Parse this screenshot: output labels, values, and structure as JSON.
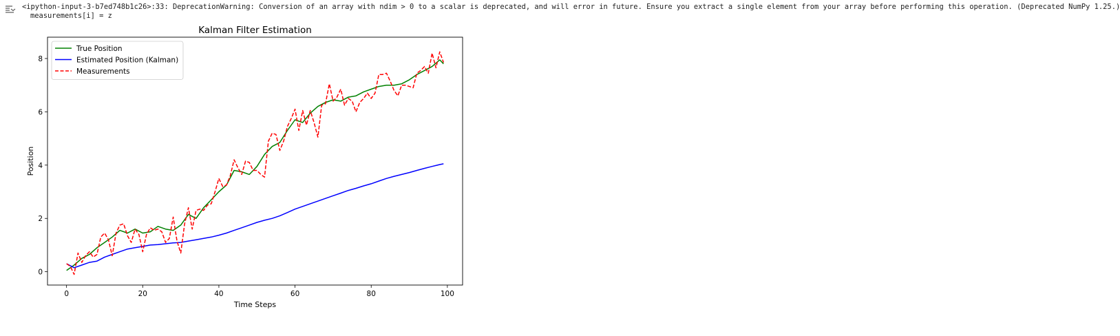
{
  "stderr": {
    "line1": "<ipython-input-3-b7ed748b1c26>:33: DeprecationWarning: Conversion of an array with ndim > 0 to a scalar is deprecated, and will error in future. Ensure you extract a single element from your array before performing this operation. (Deprecated NumPy 1.25.)",
    "line2": "measurements[i] = z"
  },
  "icons": {
    "output": "output-arrow-icon"
  },
  "chart_data": {
    "type": "line",
    "title": "Kalman Filter Estimation",
    "xlabel": "Time Steps",
    "ylabel": "Position",
    "xlim": [
      -5,
      104
    ],
    "ylim": [
      -0.5,
      8.8
    ],
    "xticks": [
      0,
      20,
      40,
      60,
      80,
      100
    ],
    "yticks": [
      0,
      2,
      4,
      6,
      8
    ],
    "grid": false,
    "legend_position": "upper-left",
    "series": [
      {
        "name": "True Position",
        "color": "#008000",
        "style": "solid",
        "x": [
          0,
          2,
          4,
          6,
          8,
          10,
          12,
          14,
          16,
          18,
          20,
          22,
          24,
          26,
          28,
          30,
          32,
          34,
          36,
          38,
          40,
          42,
          44,
          46,
          48,
          50,
          52,
          54,
          56,
          58,
          60,
          62,
          64,
          66,
          68,
          70,
          72,
          74,
          76,
          78,
          80,
          82,
          84,
          86,
          88,
          90,
          92,
          94,
          96,
          98,
          99
        ],
        "y": [
          0.05,
          0.25,
          0.5,
          0.65,
          0.9,
          1.1,
          1.3,
          1.55,
          1.45,
          1.6,
          1.45,
          1.5,
          1.7,
          1.6,
          1.55,
          1.75,
          2.15,
          2.0,
          2.4,
          2.7,
          3.0,
          3.25,
          3.8,
          3.75,
          3.65,
          3.95,
          4.4,
          4.7,
          4.85,
          5.3,
          5.7,
          5.6,
          5.95,
          6.2,
          6.35,
          6.45,
          6.4,
          6.55,
          6.6,
          6.75,
          6.85,
          6.95,
          7.0,
          7.0,
          7.05,
          7.2,
          7.4,
          7.55,
          7.7,
          7.95,
          7.8
        ]
      },
      {
        "name": "Estimated Position (Kalman)",
        "color": "#0000ff",
        "style": "solid",
        "x": [
          0,
          2,
          4,
          6,
          8,
          10,
          12,
          14,
          16,
          18,
          20,
          22,
          24,
          26,
          28,
          30,
          32,
          34,
          36,
          38,
          40,
          42,
          44,
          46,
          48,
          50,
          52,
          54,
          56,
          58,
          60,
          62,
          64,
          66,
          68,
          70,
          72,
          74,
          76,
          78,
          80,
          82,
          84,
          86,
          88,
          90,
          92,
          94,
          96,
          98,
          99
        ],
        "y": [
          0.3,
          0.15,
          0.25,
          0.35,
          0.4,
          0.55,
          0.65,
          0.75,
          0.85,
          0.9,
          0.95,
          1.0,
          1.02,
          1.05,
          1.08,
          1.1,
          1.15,
          1.2,
          1.25,
          1.3,
          1.37,
          1.45,
          1.55,
          1.65,
          1.75,
          1.85,
          1.93,
          2.0,
          2.1,
          2.22,
          2.35,
          2.45,
          2.55,
          2.65,
          2.75,
          2.85,
          2.95,
          3.05,
          3.13,
          3.22,
          3.3,
          3.4,
          3.5,
          3.58,
          3.65,
          3.72,
          3.8,
          3.88,
          3.95,
          4.02,
          4.05
        ]
      },
      {
        "name": "Measurements",
        "color": "#ff0000",
        "style": "dashed",
        "x": [
          0,
          1,
          2,
          3,
          4,
          5,
          6,
          7,
          8,
          9,
          10,
          11,
          12,
          13,
          14,
          15,
          16,
          17,
          18,
          19,
          20,
          21,
          22,
          23,
          24,
          25,
          26,
          27,
          28,
          29,
          30,
          31,
          32,
          33,
          34,
          35,
          36,
          37,
          38,
          39,
          40,
          41,
          42,
          43,
          44,
          45,
          46,
          47,
          48,
          49,
          50,
          51,
          52,
          53,
          54,
          55,
          56,
          57,
          58,
          59,
          60,
          61,
          62,
          63,
          64,
          65,
          66,
          67,
          68,
          69,
          70,
          71,
          72,
          73,
          74,
          75,
          76,
          77,
          78,
          79,
          80,
          81,
          82,
          83,
          84,
          85,
          86,
          87,
          88,
          89,
          90,
          91,
          92,
          93,
          94,
          95,
          96,
          97,
          98,
          99
        ],
        "y": [
          0.3,
          0.2,
          -0.1,
          0.7,
          0.35,
          0.6,
          0.75,
          0.55,
          0.65,
          1.3,
          1.45,
          1.2,
          0.6,
          1.45,
          1.75,
          1.8,
          1.35,
          1.1,
          1.6,
          1.4,
          0.75,
          1.4,
          1.65,
          1.55,
          1.6,
          1.5,
          1.1,
          1.25,
          2.05,
          1.15,
          0.7,
          1.8,
          2.4,
          1.6,
          2.3,
          2.35,
          2.3,
          2.5,
          2.55,
          3.0,
          3.5,
          3.2,
          3.25,
          3.6,
          4.2,
          3.9,
          3.65,
          4.15,
          4.1,
          3.8,
          3.8,
          3.65,
          3.55,
          4.9,
          5.2,
          5.15,
          4.55,
          4.9,
          5.45,
          5.75,
          6.1,
          5.3,
          6.05,
          5.5,
          6.05,
          5.6,
          5.05,
          6.25,
          6.3,
          7.05,
          6.4,
          6.55,
          6.85,
          6.25,
          6.5,
          6.4,
          6.0,
          6.35,
          6.5,
          6.7,
          6.5,
          6.7,
          7.4,
          7.4,
          7.45,
          7.15,
          6.8,
          6.6,
          7.0,
          7.0,
          6.95,
          6.9,
          7.45,
          7.55,
          7.7,
          7.45,
          8.2,
          7.65,
          8.25,
          7.85
        ]
      }
    ]
  }
}
